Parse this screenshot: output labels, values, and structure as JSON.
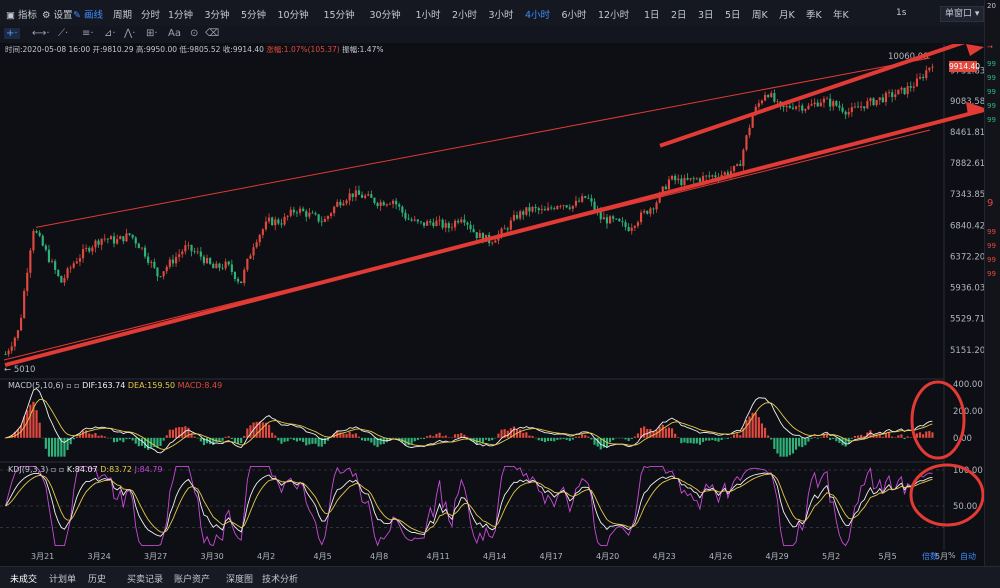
{
  "toolbar": {
    "indicators": "指标",
    "settings": "设置",
    "draw": "画线",
    "period_label": "周期",
    "periods": [
      "分时",
      "1分钟",
      "3分钟",
      "5分钟",
      "10分钟",
      "15分钟",
      "30分钟",
      "1小时",
      "2小时",
      "3小时",
      "4小时",
      "6小时",
      "12小时",
      "1日",
      "2日",
      "3日",
      "5日",
      "周K",
      "月K",
      "季K",
      "年K"
    ],
    "active_period": "4小时",
    "interval_btn": "1s",
    "window_btn": "单窗口"
  },
  "info_bar": {
    "time": "时间:2020-05-08 16:00",
    "open": "开:9810.29",
    "high": "高:9950.00",
    "low": "低:9805.52",
    "close": "收:9914.40",
    "change": "涨幅:1.07%(105.37)",
    "amplitude": "振幅:1.47%"
  },
  "price_axis": [
    "9731.83",
    "9083.58",
    "8461.81",
    "7882.61",
    "7343.85",
    "6840.42",
    "6372.20",
    "5936.03",
    "5529.71",
    "5151.20"
  ],
  "current_price": "9914.40",
  "high_marker": "10060.00",
  "low_marker": "5010",
  "macd": {
    "title": "MACD(5,10,6)",
    "dif": "DIF:163.74",
    "dea": "DEA:159.50",
    "macd": "MACD:8.49",
    "axis": [
      "400.00",
      "200.00",
      "0.00"
    ]
  },
  "kdj": {
    "title": "KDJ(9,3,3)",
    "k": "K:84.07",
    "d": "D:83.72",
    "j": "J:84.79",
    "axis": [
      "100.00",
      "50.00"
    ]
  },
  "x_axis": [
    "3月21",
    "3月24",
    "3月27",
    "3月30",
    "4月2",
    "4月5",
    "4月8",
    "4月11",
    "4月14",
    "4月17",
    "4月20",
    "4月23",
    "4月26",
    "4月29",
    "5月2",
    "5月5",
    "5月"
  ],
  "x_right": {
    "multiplier": "倍数",
    "percent": "%",
    "auto": "自动"
  },
  "bottom_tabs": [
    "未成交",
    "计划单",
    "历史",
    "买卖记录",
    "账户资产",
    "深度图",
    "技术分析"
  ],
  "chart_data": {
    "type": "candlestick",
    "interval": "4小时",
    "ylim": [
      5010,
      10060
    ],
    "price_path": [
      5100,
      5400,
      6800,
      6400,
      6000,
      6300,
      6500,
      6650,
      6600,
      6700,
      6450,
      6100,
      6300,
      6500,
      6400,
      6200,
      6250,
      6000,
      6600,
      6900,
      6900,
      7100,
      7000,
      6900,
      7200,
      7350,
      7300,
      7200,
      7250,
      6950,
      6850,
      6900,
      6800,
      7000,
      6700,
      6600,
      6750,
      7000,
      7100,
      7050,
      7200,
      7150,
      7300,
      6950,
      6900,
      6800,
      7000,
      7200,
      7600,
      7550,
      7600,
      7650,
      7700,
      7800,
      8800,
      9300,
      8900,
      9000,
      8950,
      9100,
      9000,
      8850,
      9000,
      9100,
      9200,
      9300,
      9500,
      9914
    ],
    "trend_lines": [
      {
        "from_price": 6840,
        "to_price": 10060
      },
      {
        "from_price": 5010,
        "to_price": 8461
      }
    ],
    "macd_levels": [
      -150,
      0,
      200,
      400
    ],
    "kdj_levels": [
      0,
      50,
      100
    ]
  },
  "colors": {
    "up": "#e0493e",
    "down": "#2fb27a",
    "annotation": "#e23a34",
    "accent": "#3d8bff",
    "background": "#0d0f14"
  }
}
